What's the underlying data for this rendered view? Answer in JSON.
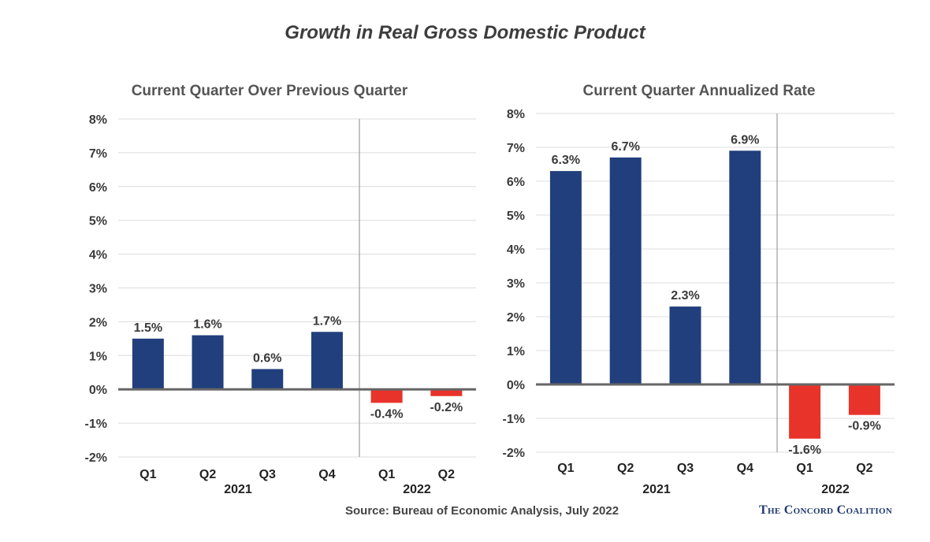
{
  "title": "Growth in Real Gross Domestic Product",
  "source": "Source: Bureau of Economic Analysis, July 2022",
  "brand": "The Concord Coalition",
  "colors": {
    "positive": "#213f7c",
    "negative": "#e8332a"
  },
  "chart_data": [
    {
      "type": "bar",
      "title": "Current Quarter Over Previous Quarter",
      "categories": [
        "Q1",
        "Q2",
        "Q3",
        "Q4",
        "Q1",
        "Q2"
      ],
      "groups": [
        {
          "label": "2021",
          "categories": [
            "Q1",
            "Q2",
            "Q3",
            "Q4"
          ]
        },
        {
          "label": "2022",
          "categories": [
            "Q1",
            "Q2"
          ]
        }
      ],
      "values": [
        1.5,
        1.6,
        0.6,
        1.7,
        -0.4,
        -0.2
      ],
      "data_labels": [
        "1.5%",
        "1.6%",
        "0.6%",
        "1.7%",
        "-0.4%",
        "-0.2%"
      ],
      "ylim": [
        -2,
        8
      ],
      "yticks": [
        -2,
        -1,
        0,
        1,
        2,
        3,
        4,
        5,
        6,
        7,
        8
      ],
      "ytick_labels": [
        "-2%",
        "-1%",
        "0%",
        "1%",
        "2%",
        "3%",
        "4%",
        "5%",
        "6%",
        "7%",
        "8%"
      ],
      "xlabel": "",
      "ylabel": "",
      "grid": true
    },
    {
      "type": "bar",
      "title": "Current Quarter Annualized Rate",
      "categories": [
        "Q1",
        "Q2",
        "Q3",
        "Q4",
        "Q1",
        "Q2"
      ],
      "groups": [
        {
          "label": "2021",
          "categories": [
            "Q1",
            "Q2",
            "Q3",
            "Q4"
          ]
        },
        {
          "label": "2022",
          "categories": [
            "Q1",
            "Q2"
          ]
        }
      ],
      "values": [
        6.3,
        6.7,
        2.3,
        6.9,
        -1.6,
        -0.9
      ],
      "data_labels": [
        "6.3%",
        "6.7%",
        "2.3%",
        "6.9%",
        "-1.6%",
        "-0.9%"
      ],
      "ylim": [
        -2,
        8
      ],
      "yticks": [
        -2,
        -1,
        0,
        1,
        2,
        3,
        4,
        5,
        6,
        7,
        8
      ],
      "ytick_labels": [
        "-2%",
        "-1%",
        "0%",
        "1%",
        "2%",
        "3%",
        "4%",
        "5%",
        "6%",
        "7%",
        "8%"
      ],
      "xlabel": "",
      "ylabel": "",
      "grid": true
    }
  ]
}
